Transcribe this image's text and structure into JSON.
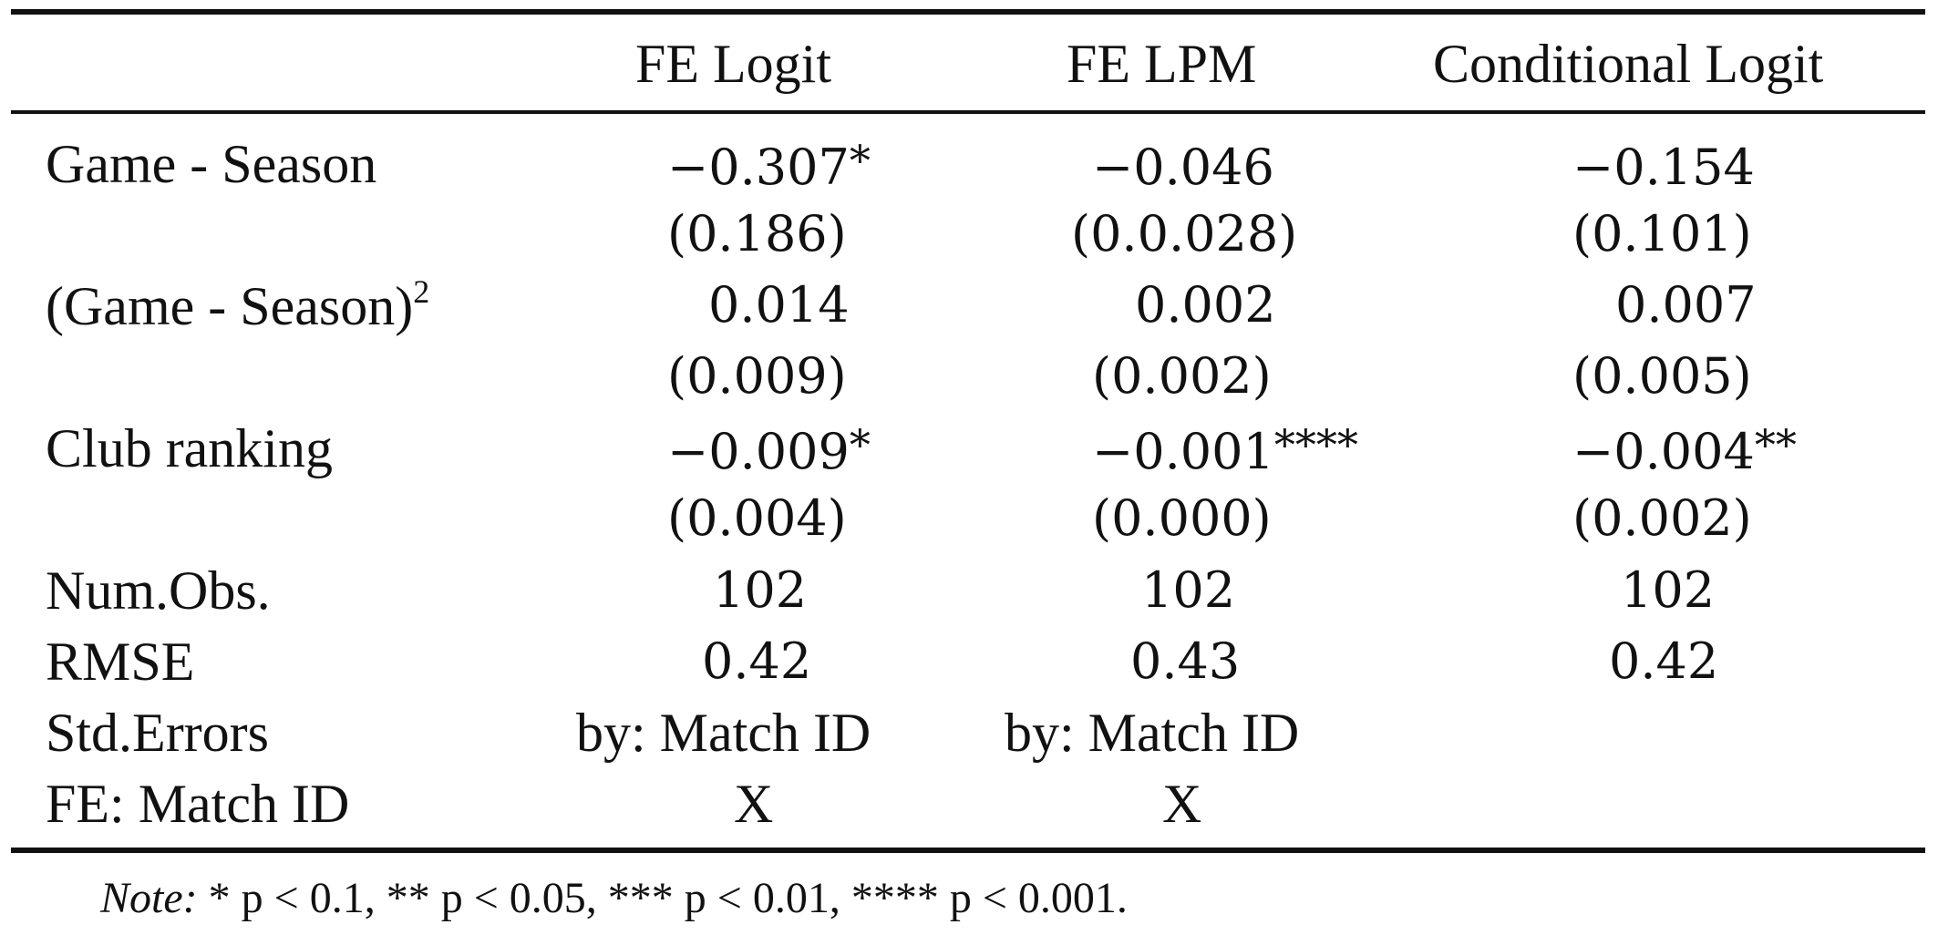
{
  "table": {
    "columns": [
      "FE Logit",
      "FE LPM",
      "Conditional Logit"
    ],
    "rows": [
      {
        "label": "Game - Season",
        "coef": [
          "−0.307",
          "−0.046",
          "−0.154"
        ],
        "stars": [
          "*",
          "",
          ""
        ],
        "se": [
          "(0.186)",
          "(0.0.028)",
          "(0.101)"
        ]
      },
      {
        "label": "(Game - Season)",
        "label_sup": "2",
        "coef": [
          "0.014",
          "0.002",
          "0.007"
        ],
        "stars": [
          "",
          "",
          ""
        ],
        "se": [
          "(0.009)",
          "(0.002)",
          "(0.005)"
        ]
      },
      {
        "label": "Club ranking",
        "coef": [
          "−0.009",
          "−0.001",
          "−0.004"
        ],
        "stars": [
          "*",
          "****",
          "**"
        ],
        "se": [
          "(0.004)",
          "(0.000)",
          "(0.002)"
        ]
      }
    ],
    "stats": [
      {
        "label": "Num.Obs.",
        "values": [
          "102",
          "102",
          "102"
        ]
      },
      {
        "label": "RMSE",
        "values": [
          "0.42",
          "0.43",
          "0.42"
        ]
      },
      {
        "label": "Std.Errors",
        "values": [
          "by: Match ID",
          "by: Match ID",
          ""
        ]
      },
      {
        "label": "FE: Match ID",
        "values": [
          "X",
          "X",
          ""
        ]
      }
    ]
  },
  "note": {
    "prefix": "Note:",
    "text": " * p < 0.1, ** p < 0.05, *** p < 0.01, **** p < 0.001."
  }
}
